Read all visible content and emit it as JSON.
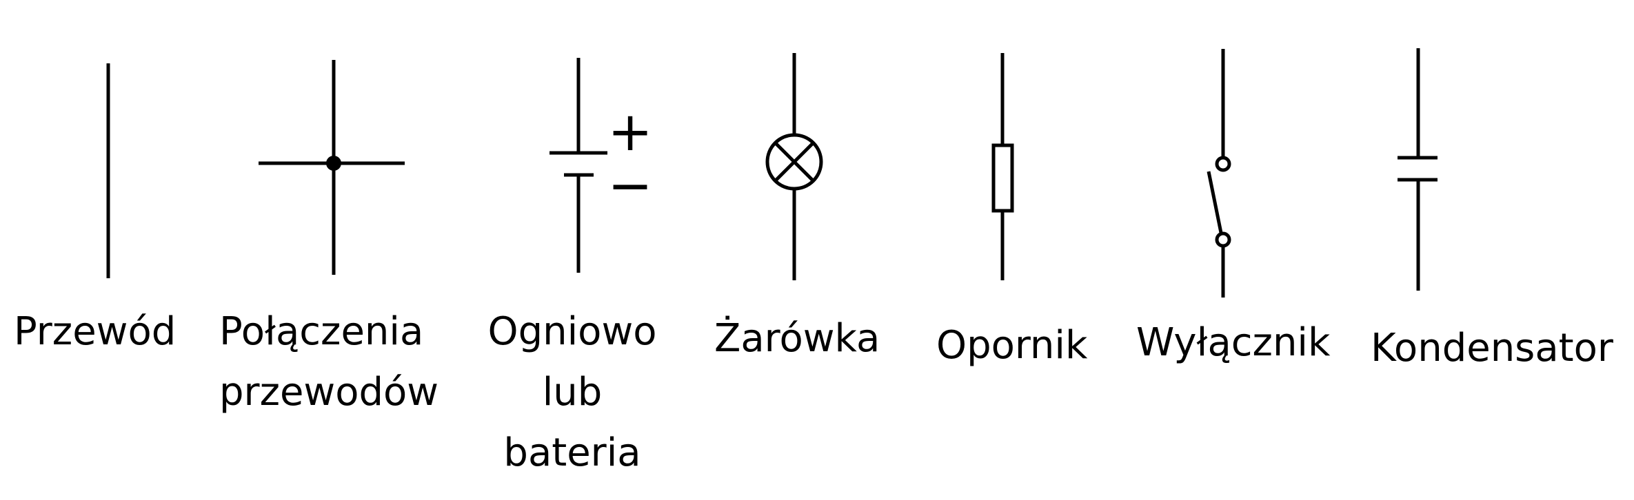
{
  "symbols": [
    {
      "id": "wire",
      "label_lines": [
        "Przewód"
      ]
    },
    {
      "id": "wire-junction",
      "label_lines": [
        "Połączenia",
        "przewodów"
      ]
    },
    {
      "id": "cell-battery",
      "label_lines": [
        "Ogniowo",
        "lub",
        "bateria"
      ],
      "plus_sign": "+",
      "minus_sign": "−"
    },
    {
      "id": "lamp",
      "label_lines": [
        "Żarówka"
      ]
    },
    {
      "id": "resistor",
      "label_lines": [
        "Opornik"
      ]
    },
    {
      "id": "switch",
      "label_lines": [
        "Wyłącznik"
      ]
    },
    {
      "id": "capacitor",
      "label_lines": [
        "Kondensator"
      ]
    }
  ],
  "colors": {
    "ink": "#000000",
    "background": "#ffffff"
  }
}
